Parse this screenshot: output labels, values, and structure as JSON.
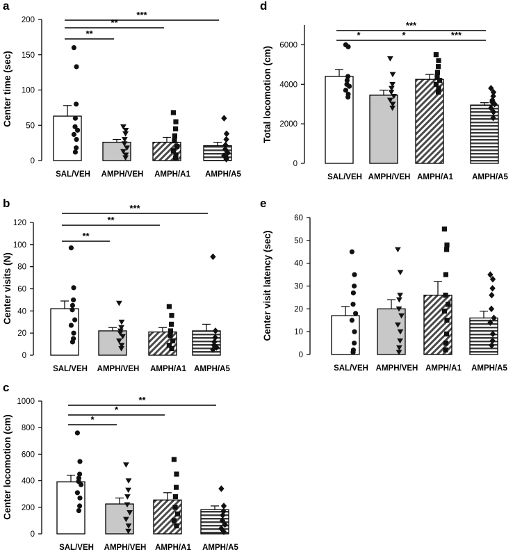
{
  "chart_data": [
    {
      "id": "a",
      "type": "bar",
      "panel_label": "a",
      "ylabel": "Center time (sec)",
      "ylim": [
        0,
        200
      ],
      "yticks": [
        0,
        50,
        100,
        150,
        200
      ],
      "categories": [
        "SAL/VEH",
        "AMPH/VEH",
        "AMPH/A1",
        "AMPH/A5"
      ],
      "values": [
        63,
        26,
        26,
        21
      ],
      "errors": [
        15,
        4,
        7,
        5
      ],
      "points": [
        [
          160,
          133,
          80,
          60,
          48,
          43,
          37,
          30,
          18,
          12
        ],
        [
          48,
          43,
          38,
          30,
          24,
          18,
          13,
          8,
          4
        ],
        [
          68,
          55,
          45,
          35,
          28,
          20,
          14,
          8,
          3
        ],
        [
          60,
          38,
          30,
          22,
          16,
          11,
          7,
          4,
          2
        ]
      ],
      "significance": [
        {
          "from": 0,
          "to": 1,
          "label": "**"
        },
        {
          "from": 0,
          "to": 2,
          "label": "**"
        },
        {
          "from": 0,
          "to": 3,
          "label": "***"
        }
      ]
    },
    {
      "id": "b",
      "type": "bar",
      "panel_label": "b",
      "ylabel": "Center visits (N)",
      "ylim": [
        0,
        120
      ],
      "yticks": [
        0,
        20,
        40,
        60,
        80,
        100,
        120
      ],
      "categories": [
        "SAL/VEH",
        "AMPH/VEH",
        "AMPH/A1",
        "AMPH/A5"
      ],
      "values": [
        42,
        22,
        21,
        22
      ],
      "errors": [
        7,
        3,
        4,
        6
      ],
      "points": [
        [
          97,
          61,
          50,
          45,
          41,
          32,
          27,
          20,
          15,
          12
        ],
        [
          47,
          30,
          25,
          22,
          20,
          17,
          13,
          9,
          6
        ],
        [
          44,
          36,
          28,
          22,
          18,
          13,
          9,
          6
        ],
        [
          89,
          22,
          16,
          12,
          9,
          7,
          5
        ]
      ],
      "significance": [
        {
          "from": 0,
          "to": 1,
          "label": "**"
        },
        {
          "from": 0,
          "to": 2,
          "label": "**"
        },
        {
          "from": 0,
          "to": 3,
          "label": "***"
        }
      ]
    },
    {
      "id": "c",
      "type": "bar",
      "panel_label": "c",
      "ylabel": "Center locomotion (cm)",
      "ylim": [
        0,
        1000
      ],
      "yticks": [
        0,
        200,
        400,
        600,
        800,
        1000
      ],
      "categories": [
        "SAL/VEH",
        "AMPH/VEH",
        "AMPH/A1",
        "AMPH/A5"
      ],
      "values": [
        392,
        225,
        255,
        182
      ],
      "errors": [
        50,
        45,
        55,
        28
      ],
      "points": [
        [
          760,
          545,
          450,
          420,
          395,
          370,
          310,
          270,
          210,
          175
        ],
        [
          520,
          400,
          330,
          280,
          220,
          160,
          110,
          60,
          20
        ],
        [
          560,
          450,
          350,
          280,
          200,
          150,
          100,
          60
        ],
        [
          340,
          210,
          170,
          140,
          100,
          70,
          40,
          15
        ]
      ],
      "significance": [
        {
          "from": 0,
          "to": 1,
          "label": "*"
        },
        {
          "from": 0,
          "to": 2,
          "label": "*"
        },
        {
          "from": 0,
          "to": 3,
          "label": "**"
        }
      ]
    },
    {
      "id": "d",
      "type": "bar",
      "panel_label": "d",
      "ylabel": "Total locomotion (cm)",
      "ylim": [
        0,
        7000
      ],
      "yticks": [
        0,
        2000,
        4000,
        6000
      ],
      "categories": [
        "SAL/VEH",
        "AMPH/VEH",
        "AMPH/A1",
        "AMPH/A5"
      ],
      "values": [
        4400,
        3450,
        4250,
        2950
      ],
      "errors": [
        350,
        250,
        250,
        120
      ],
      "points": [
        [
          6000,
          5900,
          4400,
          4200,
          4000,
          3900,
          3700,
          3500,
          3350
        ],
        [
          5300,
          4500,
          4000,
          3800,
          3600,
          3400,
          3200,
          3000,
          2800
        ],
        [
          5500,
          5200,
          4900,
          4600,
          4400,
          4200,
          4000,
          3800,
          3600
        ],
        [
          3800,
          3600,
          3400,
          3200,
          3100,
          3000,
          2800,
          2600,
          2300
        ]
      ],
      "significance": [
        {
          "from": 0,
          "to": 1,
          "label": "*"
        },
        {
          "from": 1,
          "to": 2,
          "label": "*"
        },
        {
          "from": 2,
          "to": 3,
          "label": "***"
        },
        {
          "from": 0,
          "to": 3,
          "label": "***"
        }
      ]
    },
    {
      "id": "e",
      "type": "bar",
      "panel_label": "e",
      "ylabel": "Center visit latency (sec)",
      "ylim": [
        0,
        60
      ],
      "yticks": [
        0,
        10,
        20,
        30,
        40,
        50,
        60
      ],
      "categories": [
        "SAL/VEH",
        "AMPH/VEH",
        "AMPH/A1",
        "AMPH/A5"
      ],
      "values": [
        17,
        20,
        26,
        16
      ],
      "errors": [
        4,
        4,
        6,
        3
      ],
      "points": [
        [
          45,
          35,
          30,
          27,
          22,
          18,
          15,
          10,
          5,
          2,
          1
        ],
        [
          46,
          36,
          26,
          24,
          20,
          17,
          13,
          10,
          6,
          3,
          1
        ],
        [
          55,
          48,
          46,
          35,
          26,
          22,
          19,
          15,
          9,
          5,
          2
        ],
        [
          35,
          33,
          29,
          26,
          20,
          16,
          14,
          9,
          6,
          4
        ]
      ],
      "significance": []
    }
  ]
}
